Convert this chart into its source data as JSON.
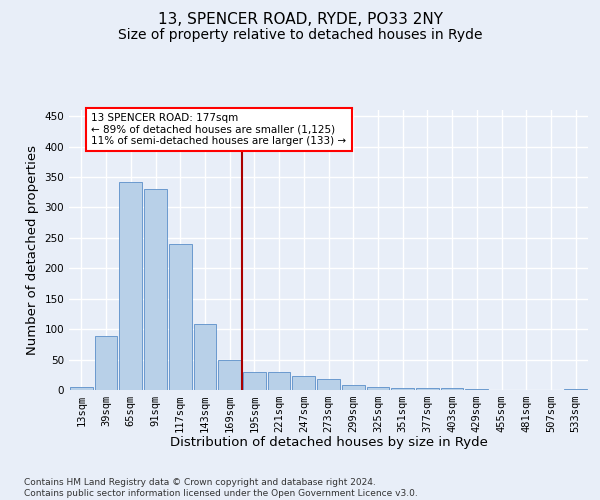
{
  "title_line1": "13, SPENCER ROAD, RYDE, PO33 2NY",
  "title_line2": "Size of property relative to detached houses in Ryde",
  "xlabel": "Distribution of detached houses by size in Ryde",
  "ylabel": "Number of detached properties",
  "footnote": "Contains HM Land Registry data © Crown copyright and database right 2024.\nContains public sector information licensed under the Open Government Licence v3.0.",
  "bar_labels": [
    "13sqm",
    "39sqm",
    "65sqm",
    "91sqm",
    "117sqm",
    "143sqm",
    "169sqm",
    "195sqm",
    "221sqm",
    "247sqm",
    "273sqm",
    "299sqm",
    "325sqm",
    "351sqm",
    "377sqm",
    "403sqm",
    "429sqm",
    "455sqm",
    "481sqm",
    "507sqm",
    "533sqm"
  ],
  "bar_values": [
    5,
    88,
    342,
    330,
    240,
    108,
    50,
    30,
    30,
    23,
    18,
    9,
    5,
    4,
    4,
    3,
    1,
    0,
    0,
    0,
    1
  ],
  "bar_color": "#b8d0e8",
  "bar_edgecolor": "#5b8fc9",
  "vline_x": 6.5,
  "vline_color": "#aa0000",
  "annotation_text": "13 SPENCER ROAD: 177sqm\n← 89% of detached houses are smaller (1,125)\n11% of semi-detached houses are larger (133) →",
  "ylim": [
    0,
    460
  ],
  "yticks": [
    0,
    50,
    100,
    150,
    200,
    250,
    300,
    350,
    400,
    450
  ],
  "bg_color": "#e8eef8",
  "grid_color": "#ffffff",
  "title_fontsize": 11,
  "subtitle_fontsize": 10,
  "axis_label_fontsize": 9.5,
  "tick_fontsize": 7.5,
  "annot_fontsize": 7.5,
  "footnote_fontsize": 6.5
}
